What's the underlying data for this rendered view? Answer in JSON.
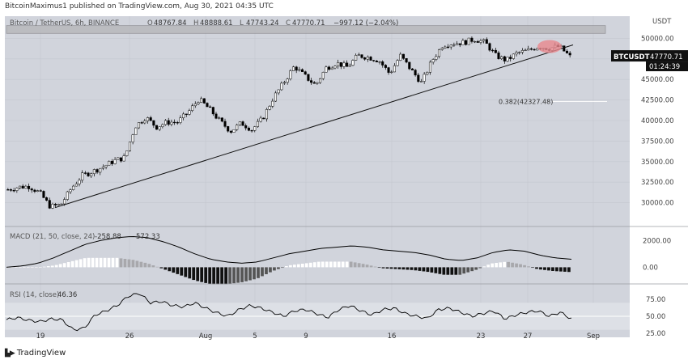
{
  "header": {
    "publisher": "BitcoinMaximus1 published on TradingView.com, Aug 30, 2021 04:35 UTC"
  },
  "footer": {
    "brand": "TradingView",
    "logo": "tradingview-logo-icon"
  },
  "colors": {
    "background": "#d1d4dc",
    "chart_bg": "#d1d4dc",
    "up": "#ffffff",
    "down": "#000000",
    "resistance": "#b8b8bc",
    "highlight": "#e8878d"
  },
  "chart_data": [
    {
      "type": "candlestick",
      "title": "Bitcoin / TetherUS, 6h, BINANCE",
      "ohlc_readout": {
        "open_label": "O",
        "open": "48767.84",
        "high_label": "H",
        "high": "48888.61",
        "low_label": "L",
        "low": "47743.24",
        "close_label": "C",
        "close": "47770.71",
        "change": "−997.12 (−2.04%)"
      },
      "yaxis_unit": "USDT",
      "yticks": [
        "50000.00",
        "47500.00",
        "45000.00",
        "42500.00",
        "40000.00",
        "37500.00",
        "35000.00",
        "32500.00",
        "30000.00"
      ],
      "ylim": [
        27500,
        52500
      ],
      "xticks": [
        "19",
        "26",
        "Aug",
        "5",
        "9",
        "16",
        "23",
        "27",
        "Sep"
      ],
      "price_label": {
        "symbol": "BTCUSDT",
        "value": "47770.71",
        "countdown": "01:24:39"
      },
      "fib_level": {
        "label": "0.382(42327.48)",
        "value": 42327.48
      },
      "resistance_zone": [
        50600,
        51550
      ],
      "trendline": {
        "start": [
          "Jul 20",
          29400
        ],
        "end": [
          "Aug 29",
          49200
        ]
      },
      "close_path": [
        31600,
        31900,
        32000,
        31200,
        29500,
        29800,
        31800,
        33300,
        33800,
        34400,
        35100,
        35500,
        39300,
        40400,
        39200,
        39800,
        39800,
        41000,
        42600,
        41400,
        39900,
        38700,
        39700,
        38900,
        40200,
        42700,
        44600,
        46600,
        45400,
        44300,
        46400,
        47000,
        46500,
        47900,
        47700,
        47300,
        45700,
        47900,
        46200,
        44600,
        47300,
        49200,
        49400,
        49500,
        49900,
        49500,
        47900,
        47300,
        48200,
        48500,
        49000,
        48800,
        49000,
        47770
      ]
    },
    {
      "type": "histogram",
      "title": "MACD (21, 50, close, 24)",
      "readout": [
        "-258.88",
        "572.33"
      ],
      "yticks": [
        "2000.00",
        "0.00"
      ],
      "ylim": [
        -1000,
        2800
      ],
      "macd_path": [
        0,
        100,
        300,
        700,
        1200,
        1700,
        2000,
        2200,
        2300,
        2200,
        1900,
        1500,
        1000,
        600,
        400,
        300,
        400,
        700,
        1000,
        1200,
        1400,
        1500,
        1600,
        1500,
        1300,
        1200,
        1100,
        900,
        600,
        500,
        700,
        1100,
        1300,
        1200,
        900,
        700,
        600
      ],
      "signal_path": [
        0,
        100,
        300,
        600,
        900,
        1200,
        1500,
        1700,
        1900,
        2000,
        2000,
        1900,
        1700,
        1500,
        1300,
        1100,
        1000,
        900,
        900,
        1000,
        1100,
        1200,
        1300,
        1350,
        1350,
        1300,
        1250,
        1150,
        1000,
        900,
        850,
        900,
        1000,
        1050,
        1000,
        900,
        850
      ]
    },
    {
      "type": "line",
      "title": "RSI (14, close)",
      "readout": "46.36",
      "yticks": [
        "75.00",
        "50.00",
        "25.00"
      ],
      "ylim": [
        20,
        92
      ],
      "band": [
        30,
        70
      ],
      "values": [
        45,
        48,
        44,
        42,
        46,
        45,
        30,
        32,
        52,
        58,
        66,
        80,
        84,
        70,
        72,
        66,
        64,
        70,
        62,
        55,
        50,
        60,
        66,
        62,
        56,
        50,
        58,
        60,
        54,
        48,
        60,
        66,
        58,
        52,
        60,
        62,
        54,
        50,
        47,
        60,
        62,
        56,
        50,
        54,
        58,
        46,
        52,
        56,
        58,
        50,
        56,
        46
      ]
    }
  ]
}
